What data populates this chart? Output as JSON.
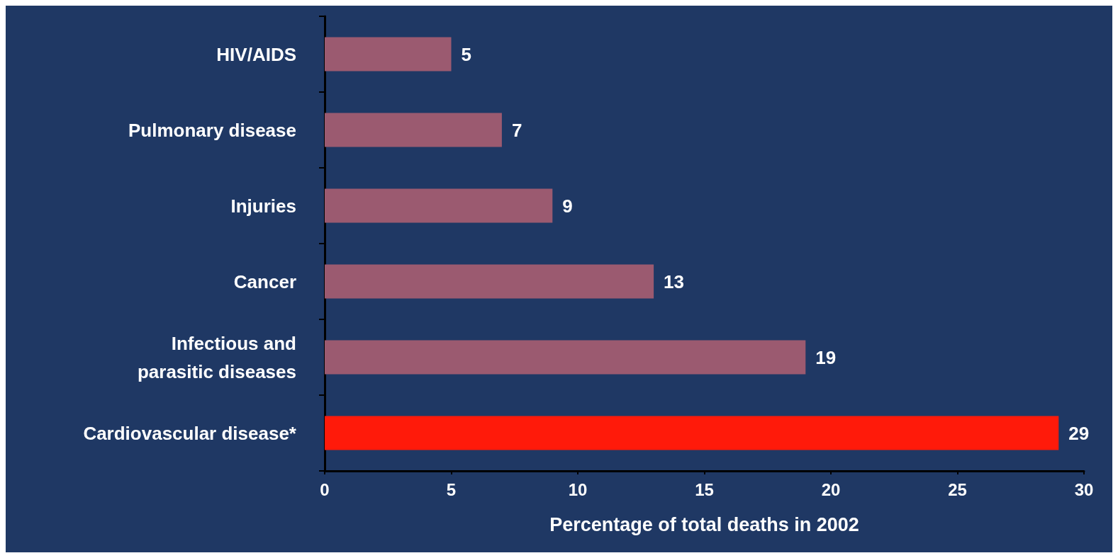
{
  "chart_data": {
    "type": "bar",
    "orientation": "horizontal",
    "xlabel": "Percentage of total deaths in 2002",
    "categories": [
      "HIV/AIDS",
      "Pulmonary disease",
      "Injuries",
      "Cancer",
      "Infectious and\nparasitic diseases",
      "Cardiovascular disease*"
    ],
    "values": [
      5,
      7,
      9,
      13,
      19,
      29
    ],
    "colors": [
      "#9b5a70",
      "#9b5a70",
      "#9b5a70",
      "#9b5a70",
      "#9b5a70",
      "#ff1a0a"
    ],
    "xlim": [
      0,
      30
    ],
    "xticks": [
      0,
      5,
      10,
      15,
      20,
      25,
      30
    ],
    "data_labels": true
  }
}
